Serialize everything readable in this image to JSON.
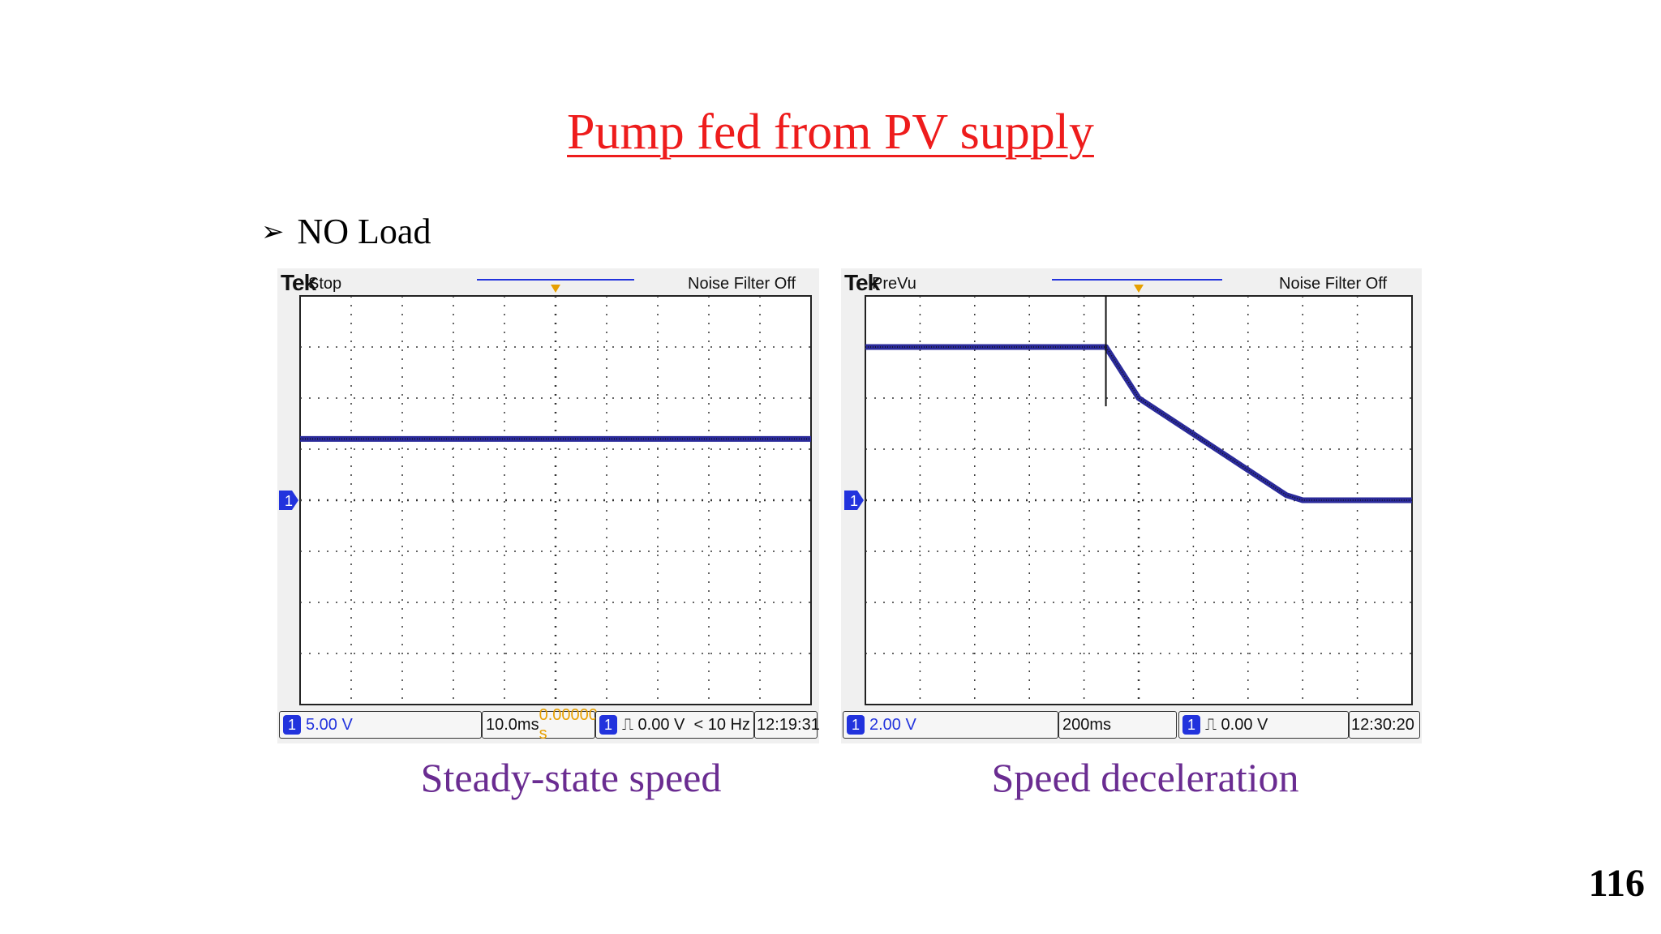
{
  "title": "Pump fed from PV supply",
  "bullet": {
    "glyph": "➢",
    "text": "NO Load"
  },
  "scopes": [
    {
      "brand": "Tek",
      "state": "Stop",
      "noise_filter": "Noise Filter Off",
      "marker_label": "1",
      "channel_badge": "1",
      "volts_per_div": "5.00 V",
      "time_per_div": "10.0ms",
      "trigger_offset": "0.00000 s",
      "trigger_channel": "1",
      "trigger_level": "⎍ 0.00 V",
      "frequency": "< 10 Hz",
      "time": "12:19:31"
    },
    {
      "brand": "Tek",
      "state": "PreVu",
      "noise_filter": "Noise Filter Off",
      "marker_label": "1",
      "channel_badge": "1",
      "volts_per_div": "2.00 V",
      "time_per_div": "200ms",
      "trigger_channel": "1",
      "trigger_level": "⎍ 0.00 V",
      "time": "12:30:20"
    }
  ],
  "captions": [
    "Steady-state speed",
    "Speed deceleration"
  ],
  "page_number": "116",
  "chart_data": [
    {
      "type": "line",
      "title": "",
      "divisions": {
        "x": 10,
        "y": 8
      },
      "ylim": [
        -4,
        4
      ],
      "xlim": [
        0,
        10
      ],
      "series": [
        {
          "x": [
            0,
            10
          ],
          "y": [
            1.2,
            1.2
          ]
        }
      ],
      "colors": {
        "trace": "#2a2a9a",
        "grid": "#333333"
      }
    },
    {
      "type": "line",
      "title": "",
      "divisions": {
        "x": 10,
        "y": 8
      },
      "ylim": [
        -4,
        4
      ],
      "xlim": [
        0,
        10
      ],
      "series": [
        {
          "x": [
            0,
            4.4,
            5.0,
            7.7,
            8.0,
            10
          ],
          "y": [
            3.0,
            3.0,
            2.0,
            0.1,
            0.0,
            0.0
          ]
        }
      ],
      "colors": {
        "trace": "#2a2a9a",
        "grid": "#333333"
      }
    }
  ]
}
